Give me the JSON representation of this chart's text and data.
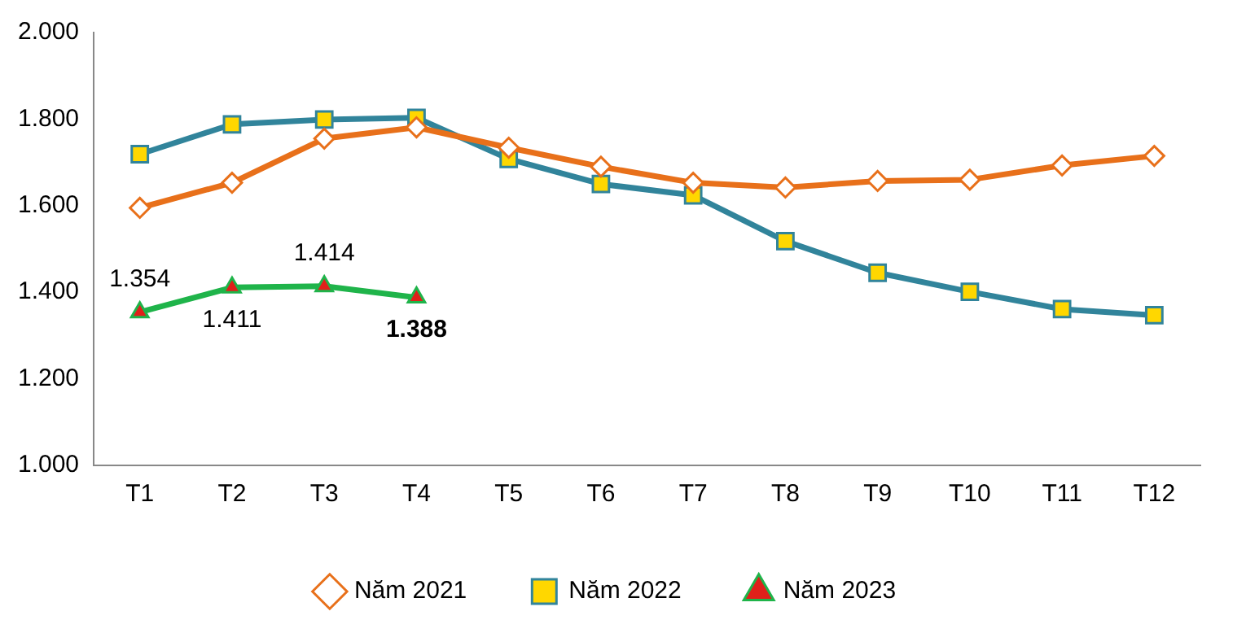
{
  "chart_data": {
    "type": "line",
    "categories": [
      "T1",
      "T2",
      "T3",
      "T4",
      "T5",
      "T6",
      "T7",
      "T8",
      "T9",
      "T10",
      "T11",
      "T12"
    ],
    "ylim": [
      1000,
      2000
    ],
    "yticks": [
      {
        "value": 1000,
        "label": "1.000"
      },
      {
        "value": 1200,
        "label": "1.200"
      },
      {
        "value": 1400,
        "label": "1.400"
      },
      {
        "value": 1600,
        "label": "1.600"
      },
      {
        "value": 1800,
        "label": "1.800"
      },
      {
        "value": 2000,
        "label": "2.000"
      }
    ],
    "grid": false,
    "legend": "bottom",
    "line_style": "solid",
    "series": [
      {
        "name": "Năm 2021",
        "color": "#e8701a",
        "marker": "diamond",
        "values": [
          1595,
          1653,
          1755,
          1781,
          1734,
          1690,
          1653,
          1642,
          1657,
          1660,
          1693,
          1715
        ]
      },
      {
        "name": "Năm 2022",
        "color": "#31849b",
        "marker": "square",
        "values": [
          1719,
          1788,
          1799,
          1803,
          1708,
          1650,
          1624,
          1518,
          1445,
          1401,
          1361,
          1347
        ]
      },
      {
        "name": "Năm 2023",
        "color": "#1fb44a",
        "marker": "triangle",
        "values": [
          1354,
          1411,
          1414,
          1388,
          null,
          null,
          null,
          null,
          null,
          null,
          null,
          null
        ],
        "value_labels": [
          "1.354",
          "1.411",
          "1.414",
          "1.388",
          null,
          null,
          null,
          null,
          null,
          null,
          null,
          null
        ]
      }
    ]
  }
}
